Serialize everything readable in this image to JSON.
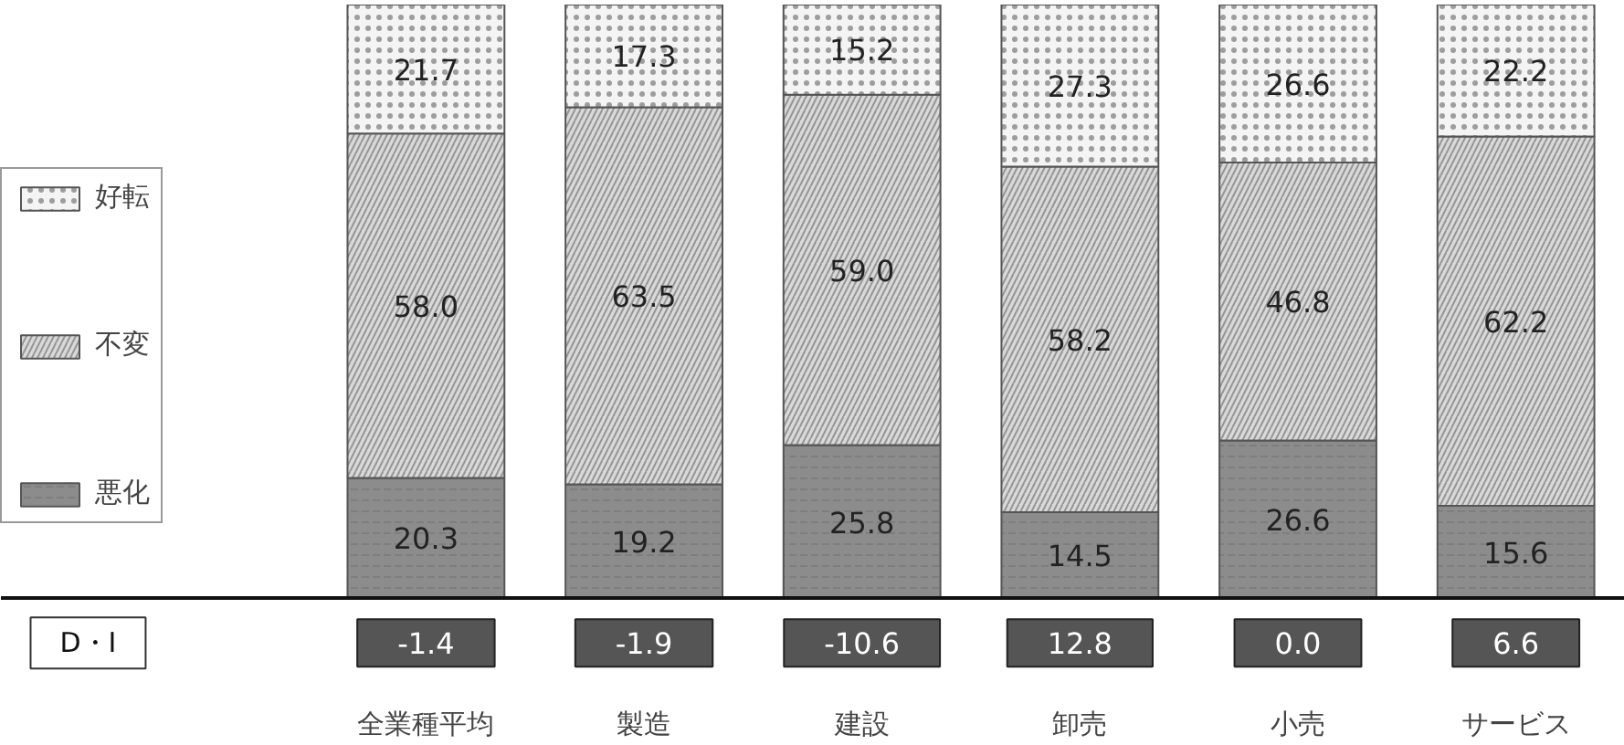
{
  "chart_data": {
    "type": "bar",
    "stacked": true,
    "categories": [
      "全業種平均",
      "製造",
      "建設",
      "卸売",
      "小売",
      "サービス"
    ],
    "series": [
      {
        "name": "悪化",
        "color": "#8c8c8c",
        "values": [
          20.3,
          19.2,
          25.8,
          14.5,
          26.6,
          15.6
        ],
        "value_labels": [
          "20.3",
          "19.2",
          "25.8",
          "14.5",
          "26.6",
          "15.6"
        ]
      },
      {
        "name": "不変",
        "color": "#d9d9d9",
        "values": [
          58.0,
          63.5,
          59.0,
          58.2,
          46.8,
          62.2
        ],
        "value_labels": [
          "58.0",
          "63.5",
          "59.0",
          "58.2",
          "46.8",
          "62.2"
        ]
      },
      {
        "name": "好転",
        "color": "#f4f4f4",
        "values": [
          21.7,
          17.3,
          15.2,
          27.3,
          26.6,
          22.2
        ],
        "value_labels": [
          "21.7",
          "17.3",
          "15.2",
          "27.3",
          "26.6",
          "22.2"
        ]
      }
    ],
    "annotations": [
      "D・I",
      "-1.4",
      "-1.9",
      "-10.6",
      "12.8",
      "0.0",
      "6.6"
    ],
    "legend": "left",
    "grid": false
  }
}
